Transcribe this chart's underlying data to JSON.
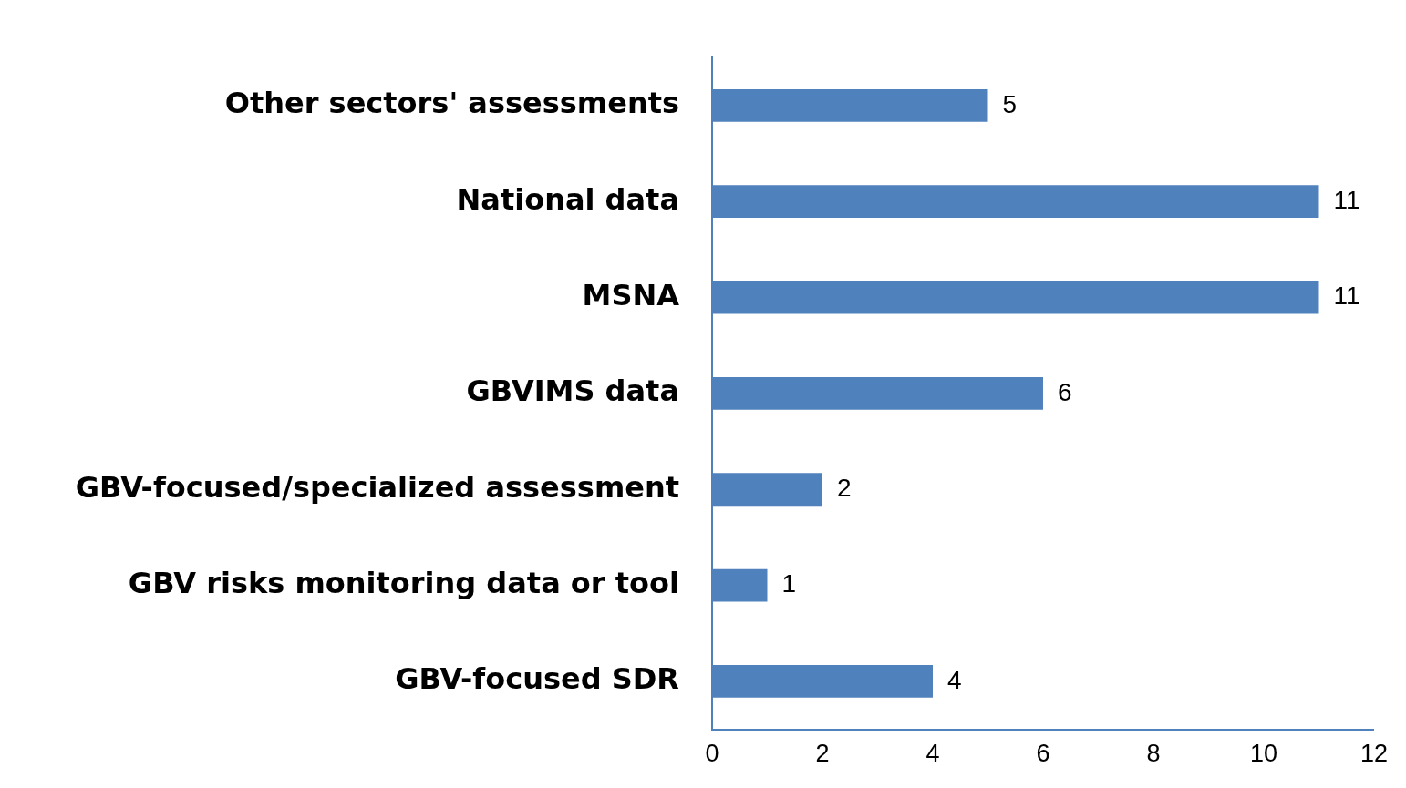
{
  "chart_data": {
    "type": "bar",
    "orientation": "horizontal",
    "categories": [
      "Other sectors' assessments",
      "National data",
      "MSNA",
      "GBVIMS data",
      "GBV-focused/specialized assessment",
      "GBV risks monitoring data or tool",
      "GBV-focused SDR"
    ],
    "values": [
      5,
      11,
      11,
      6,
      2,
      1,
      4
    ],
    "color": "#4f81bd",
    "xlim": [
      0,
      12
    ],
    "xticks": [
      0,
      2,
      4,
      6,
      8,
      10,
      12
    ],
    "grid": false,
    "legend": false,
    "data_labels": true
  }
}
